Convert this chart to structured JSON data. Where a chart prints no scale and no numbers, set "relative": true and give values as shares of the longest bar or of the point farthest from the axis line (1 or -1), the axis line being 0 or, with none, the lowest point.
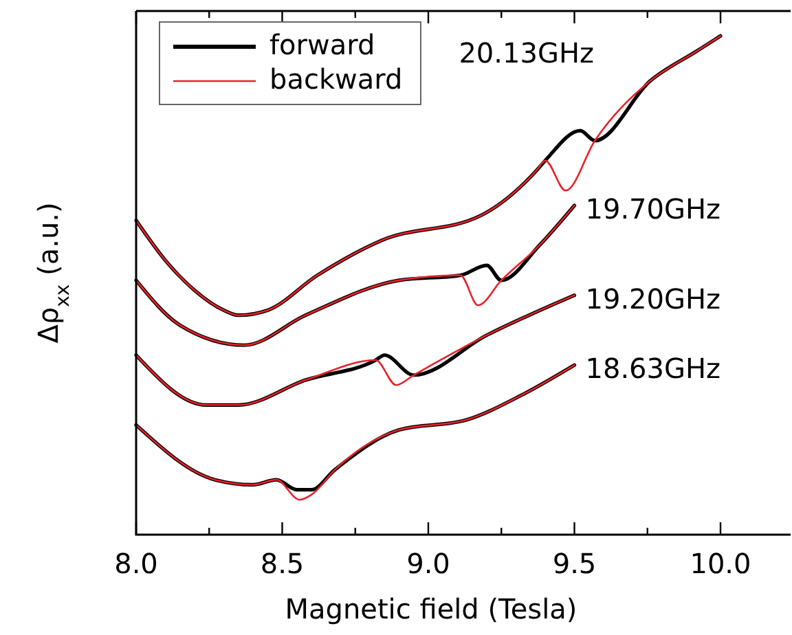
{
  "chart_data": {
    "type": "line",
    "relative": true,
    "xlabel": "Magnetic field (Tesla)",
    "ylabel": "Δρ$_{xx}$ (a.u.)",
    "xlim": [
      8.0,
      10.24
    ],
    "xticks": [
      {
        "value": 8,
        "label": "8.0"
      },
      {
        "value": 8.25,
        "label": null
      },
      8.5,
      {
        "value": 8.75,
        "label": null
      },
      {
        "value": 9,
        "label": "9.0"
      },
      {
        "value": 9.25,
        "label": null
      },
      9.5,
      {
        "value": 9.75,
        "label": null
      },
      {
        "value": 10,
        "label": "10.0"
      }
    ],
    "legend": "top left",
    "grid": false,
    "marker": "none",
    "line_style": "solid",
    "series": [
      {
        "name": "forward",
        "color": "#000000",
        "x": [
          8.0,
          8.1,
          8.2,
          8.3,
          8.35,
          8.45,
          8.62,
          8.84,
          9.18,
          9.37,
          9.4,
          9.52,
          9.57,
          9.76,
          9.92,
          10.0
        ],
        "values": [
          0.63,
          0.55,
          0.49,
          0.45,
          0.44,
          0.45,
          0.52,
          0.59,
          0.64,
          0.73,
          0.75,
          0.81,
          0.79,
          0.91,
          0.97,
          1.0
        ]
      },
      {
        "name": "backward",
        "color": "#e8222a",
        "x": [
          8.0,
          8.1,
          8.2,
          8.3,
          8.35,
          8.45,
          8.62,
          8.84,
          9.18,
          9.37,
          9.4,
          9.47,
          9.57,
          9.76,
          9.92,
          10.0
        ],
        "values": [
          0.63,
          0.55,
          0.49,
          0.45,
          0.44,
          0.45,
          0.52,
          0.59,
          0.64,
          0.73,
          0.75,
          0.69,
          0.79,
          0.91,
          0.97,
          1.0
        ]
      },
      {
        "color": "#000000",
        "x": [
          8.0,
          8.15,
          8.37,
          8.58,
          8.9,
          9.11,
          9.2,
          9.25,
          9.38,
          9.5
        ],
        "values": [
          0.51,
          0.42,
          0.38,
          0.44,
          0.51,
          0.52,
          0.54,
          0.51,
          0.58,
          0.66
        ]
      },
      {
        "color": "#e8222a",
        "x": [
          8.0,
          8.15,
          8.37,
          8.58,
          8.9,
          9.11,
          9.17,
          9.25,
          9.38,
          9.5
        ],
        "values": [
          0.51,
          0.42,
          0.38,
          0.44,
          0.51,
          0.52,
          0.46,
          0.51,
          0.58,
          0.66
        ]
      },
      {
        "color": "#000000",
        "x": [
          8.0,
          8.24,
          8.35,
          8.58,
          8.82,
          8.85,
          8.95,
          9.2,
          9.5
        ],
        "values": [
          0.36,
          0.26,
          0.26,
          0.31,
          0.35,
          0.36,
          0.32,
          0.4,
          0.48
        ]
      },
      {
        "color": "#e8222a",
        "x": [
          8.0,
          8.24,
          8.35,
          8.58,
          8.82,
          8.89,
          8.95,
          9.2,
          9.5
        ],
        "values": [
          0.36,
          0.26,
          0.26,
          0.31,
          0.35,
          0.3,
          0.32,
          0.4,
          0.48
        ]
      },
      {
        "color": "#000000",
        "x": [
          8.0,
          8.27,
          8.4,
          8.48,
          8.55,
          8.6,
          8.68,
          8.9,
          9.13,
          9.32,
          9.5
        ],
        "values": [
          0.22,
          0.11,
          0.1,
          0.11,
          0.09,
          0.09,
          0.13,
          0.21,
          0.23,
          0.28,
          0.34
        ]
      },
      {
        "color": "#e8222a",
        "x": [
          8.0,
          8.27,
          8.4,
          8.48,
          8.56,
          8.6,
          8.68,
          8.9,
          9.13,
          9.32,
          9.5
        ],
        "values": [
          0.22,
          0.11,
          0.1,
          0.11,
          0.07,
          0.08,
          0.13,
          0.21,
          0.23,
          0.28,
          0.34
        ]
      }
    ],
    "annotations": [
      "20.13GHz",
      "19.70GHz",
      "19.20GHz",
      "18.63GHz"
    ]
  }
}
